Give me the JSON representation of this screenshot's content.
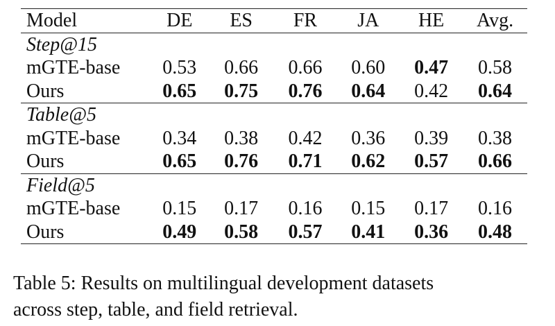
{
  "table": {
    "columns": [
      "Model",
      "DE",
      "ES",
      "FR",
      "JA",
      "HE",
      "Avg."
    ],
    "sections": [
      {
        "title": "Step@15",
        "rows": [
          {
            "model": "mGTE-base",
            "values": [
              "0.53",
              "0.66",
              "0.66",
              "0.60",
              "0.47",
              "0.58"
            ],
            "bold": [
              false,
              false,
              false,
              false,
              true,
              false
            ]
          },
          {
            "model": "Ours",
            "values": [
              "0.65",
              "0.75",
              "0.76",
              "0.64",
              "0.42",
              "0.64"
            ],
            "bold": [
              true,
              true,
              true,
              true,
              false,
              true
            ]
          }
        ]
      },
      {
        "title": "Table@5",
        "rows": [
          {
            "model": "mGTE-base",
            "values": [
              "0.34",
              "0.38",
              "0.42",
              "0.36",
              "0.39",
              "0.38"
            ],
            "bold": [
              false,
              false,
              false,
              false,
              false,
              false
            ]
          },
          {
            "model": "Ours",
            "values": [
              "0.65",
              "0.76",
              "0.71",
              "0.62",
              "0.57",
              "0.66"
            ],
            "bold": [
              true,
              true,
              true,
              true,
              true,
              true
            ]
          }
        ]
      },
      {
        "title": "Field@5",
        "rows": [
          {
            "model": "mGTE-base",
            "values": [
              "0.15",
              "0.17",
              "0.16",
              "0.15",
              "0.17",
              "0.16"
            ],
            "bold": [
              false,
              false,
              false,
              false,
              false,
              false
            ]
          },
          {
            "model": "Ours",
            "values": [
              "0.49",
              "0.58",
              "0.57",
              "0.41",
              "0.36",
              "0.48"
            ],
            "bold": [
              true,
              true,
              true,
              true,
              true,
              true
            ]
          }
        ]
      }
    ]
  },
  "caption": {
    "line1": "Table 5: Results on multilingual development datasets",
    "line2": "across step, table, and field retrieval."
  }
}
